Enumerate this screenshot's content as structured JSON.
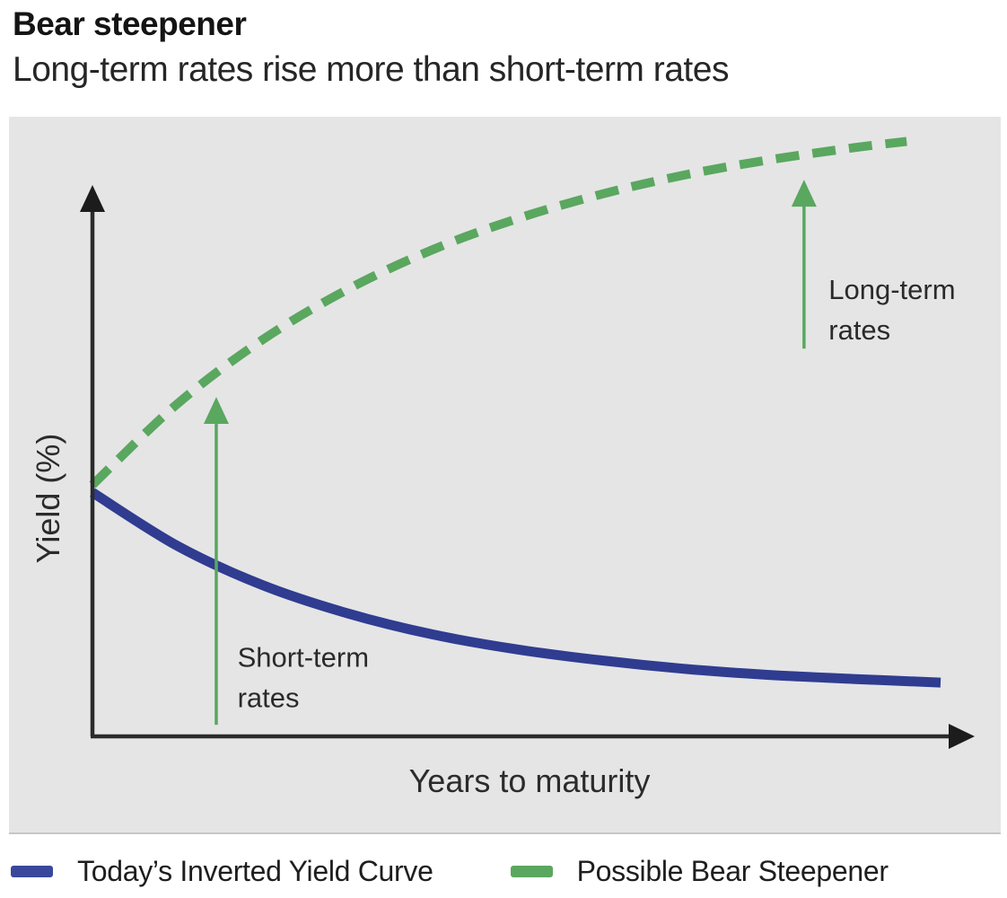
{
  "header": {
    "title": "Bear steepener",
    "subtitle": "Long-term rates rise more than short-term rates"
  },
  "chart_data": {
    "type": "line",
    "title": "Bear steepener",
    "subtitle": "Long-term rates rise more than short-term rates",
    "xlabel": "Years to maturity",
    "ylabel": "Yield (%)",
    "xlim": [
      0,
      10.6
    ],
    "ylim": [
      0,
      12.3
    ],
    "grid": false,
    "axis_ticks": "none (conceptual diagram, no numeric tick labels)",
    "legend_position": "bottom",
    "series": [
      {
        "name": "Today's Inverted Yield Curve",
        "style": "solid",
        "color": "#2f3c90",
        "x": [
          0,
          1,
          2,
          3,
          4,
          5,
          6,
          7,
          8,
          9,
          10
        ],
        "y": [
          4.85,
          3.79,
          3.01,
          2.45,
          2.03,
          1.73,
          1.51,
          1.34,
          1.22,
          1.14,
          1.07
        ]
      },
      {
        "name": "Possible Bear Steepener",
        "style": "dashed",
        "color": "#5aa75f",
        "x": [
          0,
          1,
          2,
          3,
          4,
          5,
          6,
          7,
          8,
          9,
          9.6
        ],
        "y": [
          5.0,
          6.61,
          7.88,
          8.88,
          9.67,
          10.29,
          10.78,
          11.17,
          11.47,
          11.71,
          11.83
        ]
      }
    ],
    "annotations": [
      {
        "lines": [
          "Short-term",
          "rates"
        ],
        "arrow": "up",
        "x": 1.46,
        "arrow_from_y": 0.23,
        "arrow_to_y": 6.75,
        "text_x": 1.71,
        "text_y": 1.38
      },
      {
        "lines": [
          "Long-term",
          "rates"
        ],
        "arrow": "up",
        "x": 8.39,
        "arrow_from_y": 7.71,
        "arrow_to_y": 11.07,
        "text_x": 8.68,
        "text_y": 8.7
      }
    ]
  },
  "legend": [
    {
      "label": "Today’s Inverted Yield Curve",
      "color": "#3a489c",
      "style": "solid"
    },
    {
      "label": "Possible Bear Steepener",
      "color": "#5aa75f",
      "style": "dashed"
    }
  ],
  "colors": {
    "panel_bg": "#e5e5e6",
    "axis": "#2b2b2b",
    "blue": "#2f3c90",
    "green": "#5aa75f",
    "text": "#1e1e1e"
  }
}
